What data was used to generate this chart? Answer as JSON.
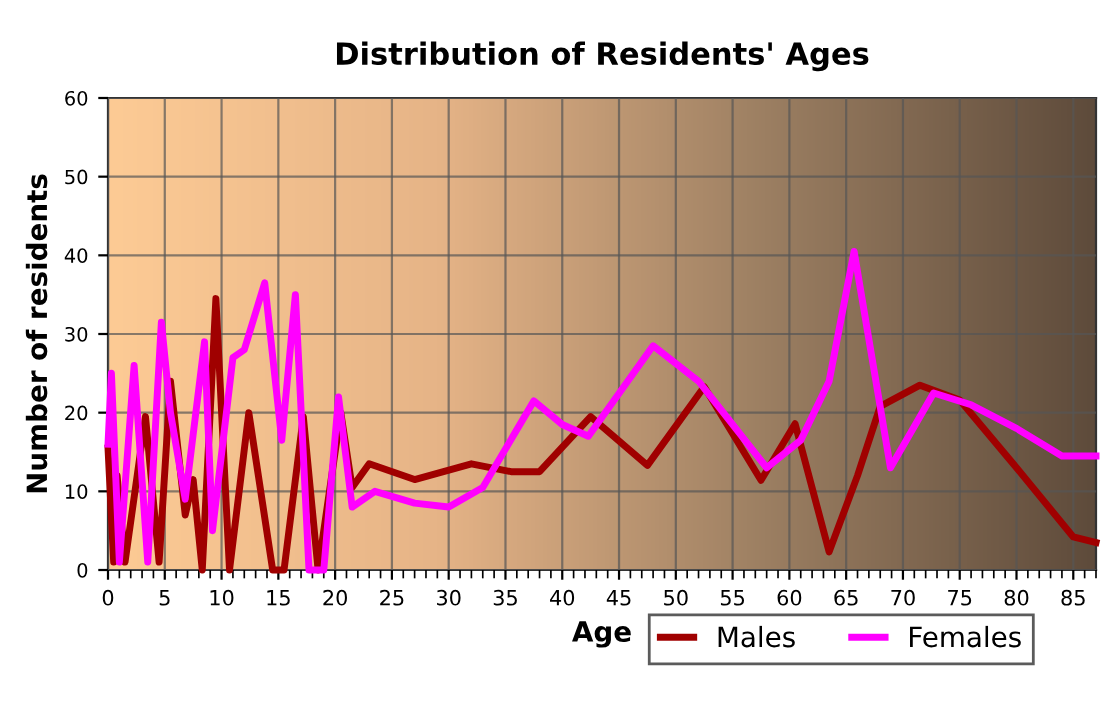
{
  "chart_data": {
    "type": "line",
    "title": "Distribution of Residents' Ages",
    "xlabel": "Age",
    "ylabel": "Number of residents",
    "xlim": [
      0,
      87
    ],
    "xticks": [
      0,
      5,
      10,
      15,
      20,
      25,
      30,
      35,
      40,
      45,
      50,
      55,
      60,
      65,
      70,
      75,
      80,
      85
    ],
    "ylim": [
      0,
      60
    ],
    "yticks": [
      0,
      10,
      20,
      30,
      40,
      50,
      60
    ],
    "grid": true,
    "legend": "bottom right",
    "series": [
      {
        "name": "Males",
        "color": "#a00000",
        "x": [
          0,
          0.5,
          0.8,
          1.5,
          3.3,
          4.5,
          5.5,
          6.8,
          7.5,
          8.3,
          9.5,
          10.7,
          12.4,
          14.5,
          15.5,
          17.2,
          18.5,
          20.5,
          21.5,
          23,
          27,
          32,
          35.5,
          38,
          42.5,
          47.5,
          52.5,
          57.5,
          60.5,
          63.5,
          66,
          68,
          71.5,
          75,
          80,
          85,
          87
        ],
        "values": [
          15.5,
          1,
          12,
          1,
          19.5,
          1,
          24,
          7,
          11.5,
          0,
          34.5,
          0,
          20,
          0,
          0,
          19.5,
          0,
          20,
          10.5,
          13.5,
          11.5,
          13.5,
          12.5,
          12.5,
          19.5,
          13.3,
          23.3,
          11.4,
          18.6,
          2.3,
          12,
          20.8,
          23.5,
          21.6,
          13,
          4.2,
          3.5
        ]
      },
      {
        "name": "Females",
        "color": "#ff00ff",
        "x": [
          0,
          0.3,
          1,
          2.3,
          3.5,
          4.7,
          5.5,
          6.8,
          8.5,
          9.2,
          11,
          12,
          13.8,
          15.3,
          16.5,
          17.7,
          19,
          20.3,
          21.5,
          23.5,
          27,
          30,
          33,
          37.5,
          40,
          42.3,
          48,
          52,
          58,
          61,
          63.5,
          65.7,
          68.9,
          72.7,
          76,
          80,
          84,
          87
        ],
        "values": [
          16,
          25,
          1,
          26,
          1,
          31.5,
          20,
          9,
          29,
          5,
          27,
          28,
          36.5,
          16.5,
          35,
          0,
          0,
          22,
          8,
          10,
          8.5,
          8,
          10.5,
          21.5,
          18.5,
          17,
          28.5,
          24,
          13,
          16.5,
          24,
          40.5,
          13,
          22.5,
          21,
          18,
          14.5,
          14.5
        ]
      }
    ]
  }
}
